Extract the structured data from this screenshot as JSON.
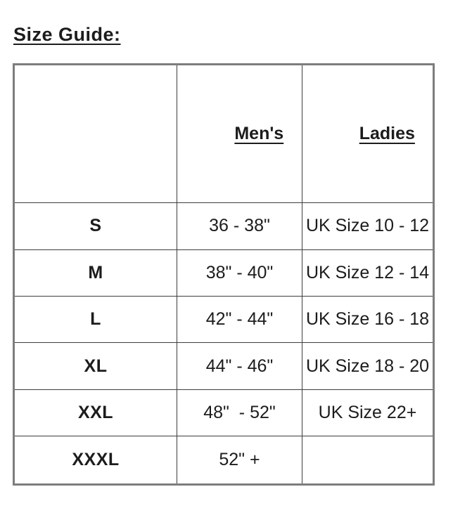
{
  "page": {
    "title": "Size Guide:"
  },
  "colors": {
    "background": "#ffffff",
    "text": "#1c1c1c",
    "outer_border": "#7d7d7d",
    "inner_border": "#3d3d3d"
  },
  "table": {
    "columns": [
      "",
      "Men's",
      "Ladies"
    ],
    "rows": [
      {
        "size": "S",
        "mens": "36 - 38\"",
        "ladies": "UK Size 10 - 12"
      },
      {
        "size": "M",
        "mens": "38\" - 40\"",
        "ladies": "UK Size 12 - 14"
      },
      {
        "size": "L",
        "mens": "42\" - 44\"",
        "ladies": "UK Size 16 - 18"
      },
      {
        "size": "XL",
        "mens": "44\" - 46\"",
        "ladies": "UK Size 18 - 20"
      },
      {
        "size": "XXL",
        "mens": "48\"  - 52\"",
        "ladies": "UK Size 22+"
      },
      {
        "size": "XXXL",
        "mens": "52\" +",
        "ladies": ""
      }
    ]
  }
}
